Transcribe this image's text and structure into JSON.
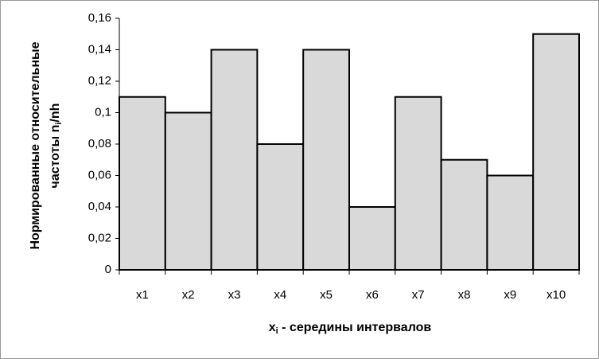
{
  "chart_data": {
    "type": "bar",
    "ylabel": [
      "Нормированные относительные",
      "частоты n",
      "i",
      "/nh"
    ],
    "xlabel": [
      "x",
      "i",
      " - середины интервалов"
    ],
    "categories": [
      "x1",
      "x2",
      "x3",
      "x4",
      "x5",
      "x6",
      "x7",
      "x8",
      "x9",
      "x10"
    ],
    "values": [
      0.11,
      0.1,
      0.14,
      0.08,
      0.14,
      0.04,
      0.11,
      0.07,
      0.06,
      0.15
    ],
    "color": "#d9d9d9",
    "ylim": [
      0,
      0.16
    ],
    "yticks": [
      0,
      {
        "value": 0.02,
        "label": "0,02"
      },
      {
        "value": 0.04,
        "label": "0,04"
      },
      {
        "value": 0.06,
        "label": "0,06"
      },
      {
        "value": 0.08,
        "label": "0,08"
      },
      {
        "value": 0.1,
        "label": "0,1"
      },
      {
        "value": 0.12,
        "label": "0,12"
      },
      {
        "value": 0.14,
        "label": "0,14"
      },
      {
        "value": 0.16,
        "label": "0,16"
      }
    ],
    "grid": false
  }
}
